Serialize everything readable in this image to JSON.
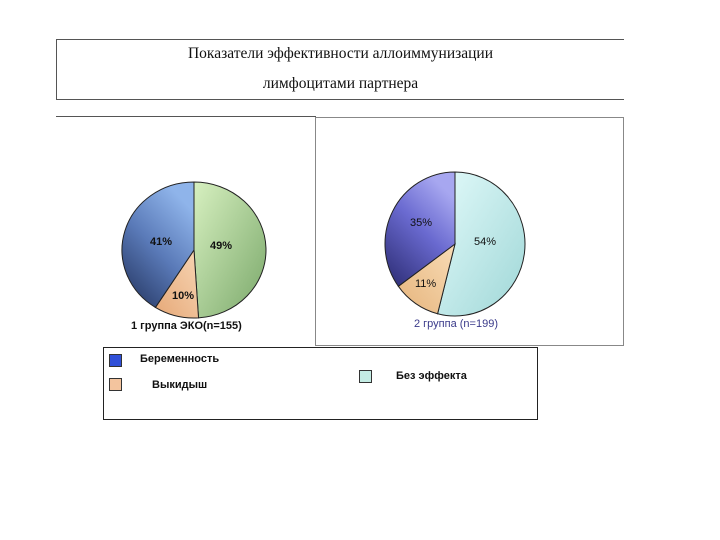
{
  "title": {
    "line1": "Показатели эффективности аллоиммунизации",
    "line2": "лимфоцитами партнера"
  },
  "colors": {
    "pregnancy": "#4d5fcc",
    "miscarriage": "#f3c49e",
    "no_effect": "#c4ece4"
  },
  "chart_data": [
    {
      "type": "pie",
      "title": "1 группа ЭКО(n=155)",
      "slices": [
        {
          "name": "Без эффекта",
          "value": 49,
          "label": "49%"
        },
        {
          "name": "Выкидыш",
          "value": 10,
          "label": "10%"
        },
        {
          "name": "Беременность",
          "value": 41,
          "label": "41%"
        }
      ]
    },
    {
      "type": "pie",
      "title": "2 группа (n=199)",
      "slices": [
        {
          "name": "Без эффекта",
          "value": 54,
          "label": "54%"
        },
        {
          "name": "Выкидыш",
          "value": 11,
          "label": "11%"
        },
        {
          "name": "Беременность",
          "value": 35,
          "label": "35%"
        }
      ]
    }
  ],
  "legend": {
    "items": [
      {
        "label": "Беременность",
        "icon": "blue-square"
      },
      {
        "label": "Выкидыш",
        "icon": "peach-square"
      },
      {
        "label": "Без эффекта",
        "icon": "mint-square"
      }
    ]
  }
}
